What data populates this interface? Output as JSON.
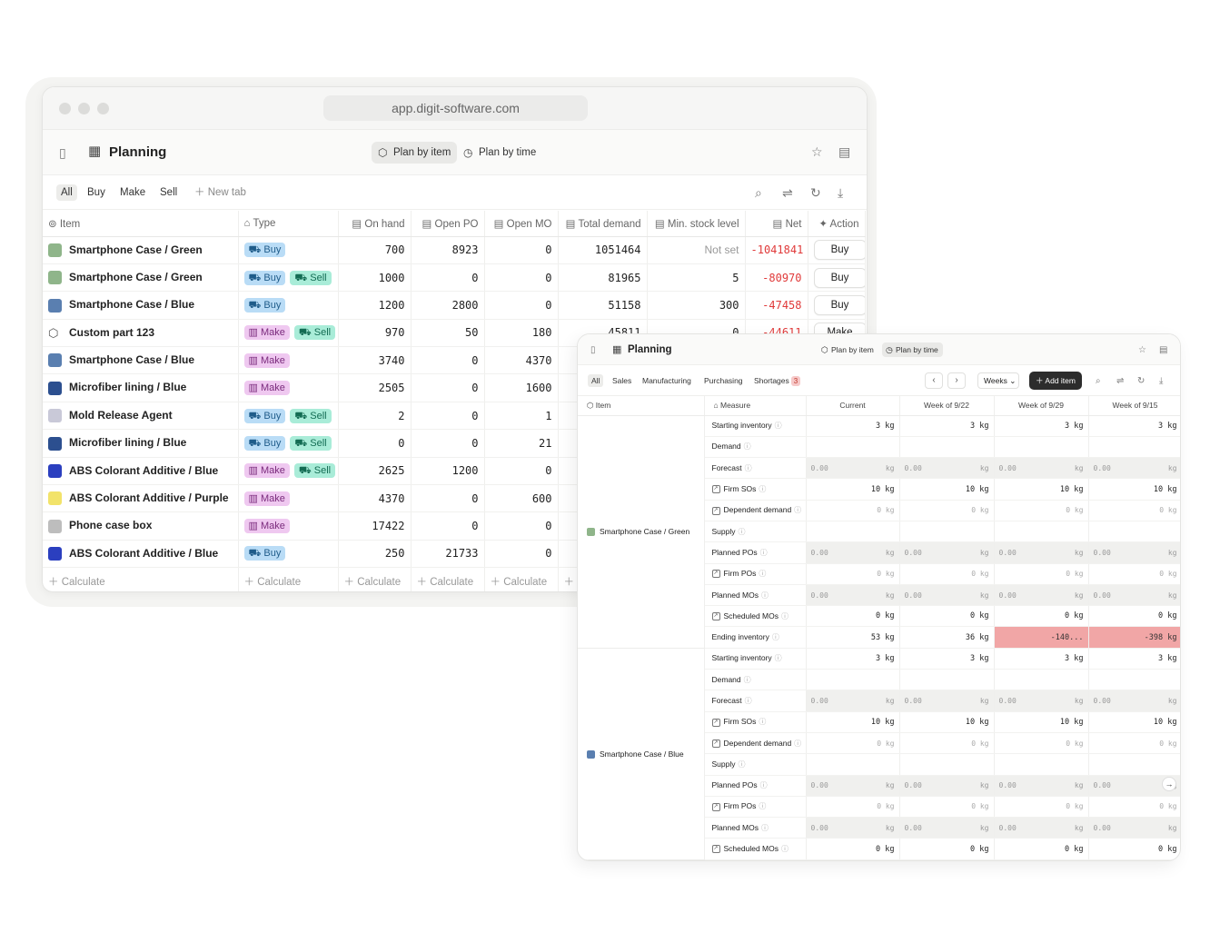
{
  "browser": {
    "url": "app.digit-software.com"
  },
  "main": {
    "title": "Planning",
    "view_toggle": {
      "by_item": "Plan by item",
      "by_time": "Plan by time"
    },
    "tabs": [
      "All",
      "Buy",
      "Make",
      "Sell"
    ],
    "new_tab": "New tab",
    "columns": [
      "Item",
      "Type",
      "On hand",
      "Open PO",
      "Open MO",
      "Total demand",
      "Min. stock level",
      "Net",
      "Action"
    ],
    "rows": [
      {
        "item": "Smartphone Case / Green",
        "thumb": "#8fb58a",
        "types": [
          "Buy"
        ],
        "on_hand": "700",
        "open_po": "8923",
        "open_mo": "0",
        "total_demand": "1051464",
        "min_stock": "Not set",
        "net": "-1041841",
        "action": "Buy"
      },
      {
        "item": "Smartphone Case / Green",
        "thumb": "#8fb58a",
        "types": [
          "Buy",
          "Sell"
        ],
        "on_hand": "1000",
        "open_po": "0",
        "open_mo": "0",
        "total_demand": "81965",
        "min_stock": "5",
        "net": "-80970",
        "action": "Buy"
      },
      {
        "item": "Smartphone Case / Blue",
        "thumb": "#5a7fb0",
        "types": [
          "Buy"
        ],
        "on_hand": "1200",
        "open_po": "2800",
        "open_mo": "0",
        "total_demand": "51158",
        "min_stock": "300",
        "net": "-47458",
        "action": "Buy"
      },
      {
        "item": "Custom part 123",
        "thumb": "cube",
        "types": [
          "Make",
          "Sell"
        ],
        "on_hand": "970",
        "open_po": "50",
        "open_mo": "180",
        "total_demand": "45811",
        "min_stock": "0",
        "net": "-44611",
        "action": "Make"
      },
      {
        "item": "Smartphone Case / Blue",
        "thumb": "#5a7fb0",
        "types": [
          "Make"
        ],
        "on_hand": "3740",
        "open_po": "0",
        "open_mo": "4370",
        "total_demand": "",
        "min_stock": "",
        "net": "",
        "action": ""
      },
      {
        "item": "Microfiber lining / Blue",
        "thumb": "#2c4f8f",
        "types": [
          "Make"
        ],
        "on_hand": "2505",
        "open_po": "0",
        "open_mo": "1600",
        "total_demand": "",
        "min_stock": "",
        "net": "",
        "action": ""
      },
      {
        "item": "Mold Release Agent",
        "thumb": "#c9c9d8",
        "types": [
          "Buy",
          "Sell"
        ],
        "on_hand": "2",
        "open_po": "0",
        "open_mo": "1",
        "total_demand": "",
        "min_stock": "",
        "net": "",
        "action": ""
      },
      {
        "item": "Microfiber lining / Blue",
        "thumb": "#2c4f8f",
        "types": [
          "Buy",
          "Sell"
        ],
        "on_hand": "0",
        "open_po": "0",
        "open_mo": "21",
        "total_demand": "",
        "min_stock": "",
        "net": "",
        "action": ""
      },
      {
        "item": "ABS Colorant Additive / Blue",
        "thumb": "#2b3fbf",
        "types": [
          "Make",
          "Sell"
        ],
        "on_hand": "2625",
        "open_po": "1200",
        "open_mo": "0",
        "total_demand": "",
        "min_stock": "",
        "net": "",
        "action": ""
      },
      {
        "item": "ABS Colorant Additive / Purple",
        "thumb": "#f2e36a",
        "types": [
          "Make"
        ],
        "on_hand": "4370",
        "open_po": "0",
        "open_mo": "600",
        "total_demand": "",
        "min_stock": "",
        "net": "",
        "action": ""
      },
      {
        "item": "Phone case box",
        "thumb": "#bdbdbd",
        "types": [
          "Make"
        ],
        "on_hand": "17422",
        "open_po": "0",
        "open_mo": "0",
        "total_demand": "",
        "min_stock": "",
        "net": "",
        "action": ""
      },
      {
        "item": "ABS Colorant Additive / Blue",
        "thumb": "#2b3fbf",
        "types": [
          "Buy"
        ],
        "on_hand": "250",
        "open_po": "21733",
        "open_mo": "0",
        "total_demand": "",
        "min_stock": "",
        "net": "",
        "action": ""
      }
    ],
    "calculate": "Calculate"
  },
  "second": {
    "title": "Planning",
    "view_toggle": {
      "by_item": "Plan by item",
      "by_time": "Plan by time"
    },
    "tabs": [
      "All",
      "Sales",
      "Manufacturing",
      "Purchasing",
      "Shortages"
    ],
    "shortages_count": "3",
    "period": "Weeks",
    "add_item": "Add item",
    "columns": [
      "Item",
      "Measure",
      "Current",
      "Week of 9/22",
      "Week of 9/29",
      "Week of 9/15"
    ],
    "groups": [
      {
        "item": "Smartphone Case / Green",
        "thumb": "#8fb58a",
        "rows": [
          {
            "m": "Starting inventory",
            "kind": "v",
            "vals": [
              "3 kg",
              "3 kg",
              "3 kg",
              "3 kg"
            ]
          },
          {
            "m": "Demand",
            "kind": "bold",
            "vals": [
              "",
              "",
              "",
              ""
            ]
          },
          {
            "m": "Forecast",
            "kind": "inp",
            "vals": [
              "0.00",
              "0.00",
              "0.00",
              "0.00"
            ]
          },
          {
            "m": "Firm SOs",
            "kind": "v",
            "link": true,
            "vals": [
              "10 kg",
              "10 kg",
              "10 kg",
              "10 kg"
            ]
          },
          {
            "m": "Dependent demand",
            "kind": "vd",
            "link": true,
            "vals": [
              "0 kg",
              "0 kg",
              "0 kg",
              "0 kg"
            ]
          },
          {
            "m": "Supply",
            "kind": "bold",
            "vals": [
              "",
              "",
              "",
              ""
            ]
          },
          {
            "m": "Planned POs",
            "kind": "inp",
            "vals": [
              "0.00",
              "0.00",
              "0.00",
              "0.00"
            ]
          },
          {
            "m": "Firm POs",
            "kind": "vd",
            "link": true,
            "vals": [
              "0 kg",
              "0 kg",
              "0 kg",
              "0 kg"
            ]
          },
          {
            "m": "Planned MOs",
            "kind": "inp",
            "vals": [
              "0.00",
              "0.00",
              "0.00",
              "0.00"
            ]
          },
          {
            "m": "Scheduled MOs",
            "kind": "v",
            "link": true,
            "vals": [
              "0 kg",
              "0 kg",
              "0 kg",
              "0 kg"
            ]
          },
          {
            "m": "Ending inventory",
            "kind": "v",
            "red": [
              false,
              false,
              true,
              true
            ],
            "vals": [
              "53 kg",
              "36 kg",
              "-140...",
              "-398 kg"
            ]
          }
        ]
      },
      {
        "item": "Smartphone Case / Blue",
        "thumb": "#5a7fb0",
        "rows": [
          {
            "m": "Starting inventory",
            "kind": "v",
            "vals": [
              "3 kg",
              "3 kg",
              "3 kg",
              "3 kg"
            ]
          },
          {
            "m": "Demand",
            "kind": "bold",
            "vals": [
              "",
              "",
              "",
              ""
            ]
          },
          {
            "m": "Forecast",
            "kind": "inp",
            "vals": [
              "0.00",
              "0.00",
              "0.00",
              "0.00"
            ]
          },
          {
            "m": "Firm SOs",
            "kind": "v",
            "link": true,
            "vals": [
              "10 kg",
              "10 kg",
              "10 kg",
              "10 kg"
            ]
          },
          {
            "m": "Dependent demand",
            "kind": "vd",
            "link": true,
            "vals": [
              "0 kg",
              "0 kg",
              "0 kg",
              "0 kg"
            ]
          },
          {
            "m": "Supply",
            "kind": "bold",
            "vals": [
              "",
              "",
              "",
              ""
            ]
          },
          {
            "m": "Planned POs",
            "kind": "inp",
            "vals": [
              "0.00",
              "0.00",
              "0.00",
              "0.00"
            ]
          },
          {
            "m": "Firm POs",
            "kind": "vd",
            "link": true,
            "vals": [
              "0 kg",
              "0 kg",
              "0 kg",
              "0 kg"
            ]
          },
          {
            "m": "Planned MOs",
            "kind": "inp",
            "vals": [
              "0.00",
              "0.00",
              "0.00",
              "0.00"
            ]
          },
          {
            "m": "Scheduled MOs",
            "kind": "v",
            "link": true,
            "vals": [
              "0 kg",
              "0 kg",
              "0 kg",
              "0 kg"
            ]
          }
        ]
      }
    ],
    "unit": "kg"
  }
}
